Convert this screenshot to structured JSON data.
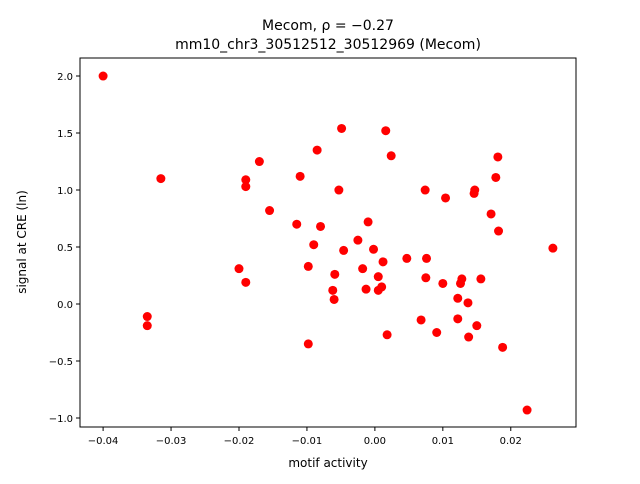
{
  "chart_data": {
    "type": "scatter",
    "title_line1": "Mecom, ρ = −0.27",
    "title_line2": "mm10_chr3_30512512_30512969 (Mecom)",
    "xlabel": "motif activity",
    "ylabel": "signal at CRE (ln)",
    "xlim": [
      -0.0434,
      0.0296
    ],
    "ylim": [
      -1.079,
      2.158
    ],
    "xticks": [
      {
        "value": -0.04,
        "label": "−0.04"
      },
      {
        "value": -0.03,
        "label": "−0.03"
      },
      {
        "value": -0.02,
        "label": "−0.02"
      },
      {
        "value": -0.01,
        "label": "−0.01"
      },
      {
        "value": 0.0,
        "label": "0.00"
      },
      {
        "value": 0.01,
        "label": "0.01"
      },
      {
        "value": 0.02,
        "label": "0.02"
      }
    ],
    "yticks": [
      {
        "value": -1.0,
        "label": "−1.0"
      },
      {
        "value": -0.5,
        "label": "−0.5"
      },
      {
        "value": 0.0,
        "label": "0.0"
      },
      {
        "value": 0.5,
        "label": "0.5"
      },
      {
        "value": 1.0,
        "label": "1.0"
      },
      {
        "value": 1.5,
        "label": "1.5"
      },
      {
        "value": 2.0,
        "label": "2.0"
      }
    ],
    "grid": false,
    "marker_color": "#ff0000",
    "points": [
      [
        -0.04,
        2.0
      ],
      [
        -0.0315,
        1.1
      ],
      [
        -0.0335,
        -0.11
      ],
      [
        -0.0335,
        -0.19
      ],
      [
        -0.019,
        1.09
      ],
      [
        -0.019,
        1.03
      ],
      [
        -0.02,
        0.31
      ],
      [
        -0.019,
        0.19
      ],
      [
        -0.017,
        1.25
      ],
      [
        -0.0155,
        0.82
      ],
      [
        -0.011,
        1.12
      ],
      [
        -0.0115,
        0.7
      ],
      [
        -0.0085,
        1.35
      ],
      [
        -0.008,
        0.68
      ],
      [
        -0.009,
        0.52
      ],
      [
        -0.0098,
        0.33
      ],
      [
        -0.0098,
        -0.35
      ],
      [
        -0.0049,
        1.54
      ],
      [
        -0.0053,
        1.0
      ],
      [
        -0.0046,
        0.47
      ],
      [
        -0.0059,
        0.26
      ],
      [
        -0.0062,
        0.12
      ],
      [
        -0.006,
        0.04
      ],
      [
        -0.0025,
        0.56
      ],
      [
        -0.001,
        0.72
      ],
      [
        -0.0018,
        0.31
      ],
      [
        -0.0013,
        0.13
      ],
      [
        -0.0002,
        0.48
      ],
      [
        0.0005,
        0.24
      ],
      [
        0.0012,
        0.37
      ],
      [
        0.0005,
        0.12
      ],
      [
        0.001,
        0.15
      ],
      [
        0.0016,
        1.52
      ],
      [
        0.0024,
        1.3
      ],
      [
        0.0018,
        -0.27
      ],
      [
        0.0047,
        0.4
      ],
      [
        0.0074,
        1.0
      ],
      [
        0.0076,
        0.4
      ],
      [
        0.0075,
        0.23
      ],
      [
        0.0068,
        -0.14
      ],
      [
        0.0091,
        -0.25
      ],
      [
        0.0104,
        0.93
      ],
      [
        0.01,
        0.18
      ],
      [
        0.0122,
        0.05
      ],
      [
        0.0122,
        -0.13
      ],
      [
        0.0128,
        0.22
      ],
      [
        0.0126,
        0.18
      ],
      [
        0.0137,
        0.01
      ],
      [
        0.0138,
        -0.29
      ],
      [
        0.0147,
        1.0
      ],
      [
        0.0146,
        0.97
      ],
      [
        0.015,
        -0.19
      ],
      [
        0.0156,
        0.22
      ],
      [
        0.0171,
        0.79
      ],
      [
        0.0181,
        1.29
      ],
      [
        0.0178,
        1.11
      ],
      [
        0.0182,
        0.64
      ],
      [
        0.0188,
        -0.38
      ],
      [
        0.0224,
        -0.93
      ],
      [
        0.0262,
        0.49
      ]
    ]
  }
}
